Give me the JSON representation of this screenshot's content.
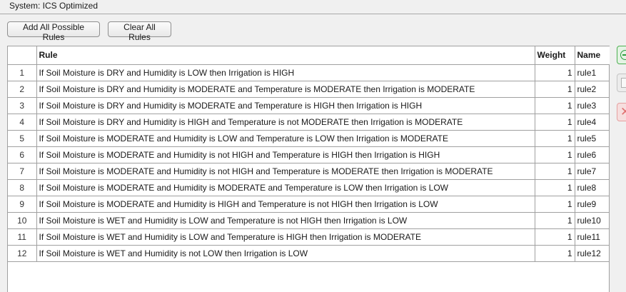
{
  "system_label": "System: ICS Optimized",
  "buttons": {
    "add_all": "Add All Possible Rules",
    "clear_all": "Clear All Rules"
  },
  "table": {
    "columns": {
      "rule": "Rule",
      "weight": "Weight",
      "name": "Name"
    },
    "rows": [
      {
        "index": "1",
        "rule": "If Soil Moisture is DRY and Humidity is LOW then Irrigation is HIGH",
        "weight": "1",
        "name": "rule1"
      },
      {
        "index": "2",
        "rule": "If Soil Moisture is DRY and Humidity is MODERATE and Temperature is MODERATE then Irrigation is MODERATE",
        "weight": "1",
        "name": "rule2"
      },
      {
        "index": "3",
        "rule": "If Soil Moisture is DRY and Humidity is MODERATE and Temperature is HIGH then Irrigation is HIGH",
        "weight": "1",
        "name": "rule3"
      },
      {
        "index": "4",
        "rule": "If Soil Moisture is DRY and Humidity is HIGH and Temperature is not MODERATE then Irrigation is MODERATE",
        "weight": "1",
        "name": "rule4"
      },
      {
        "index": "5",
        "rule": "If Soil Moisture is MODERATE and Humidity is LOW and Temperature is LOW then Irrigation is MODERATE",
        "weight": "1",
        "name": "rule5"
      },
      {
        "index": "6",
        "rule": "If Soil Moisture is MODERATE and Humidity is not HIGH and Temperature is HIGH then Irrigation is HIGH",
        "weight": "1",
        "name": "rule6"
      },
      {
        "index": "7",
        "rule": "If Soil Moisture is MODERATE and Humidity is not HIGH and Temperature is MODERATE then Irrigation is MODERATE",
        "weight": "1",
        "name": "rule7"
      },
      {
        "index": "8",
        "rule": "If Soil Moisture is MODERATE and Humidity is MODERATE and Temperature is LOW then Irrigation is LOW",
        "weight": "1",
        "name": "rule8"
      },
      {
        "index": "9",
        "rule": "If Soil Moisture is MODERATE and Humidity is HIGH and Temperature is not HIGH then Irrigation is LOW",
        "weight": "1",
        "name": "rule9"
      },
      {
        "index": "10",
        "rule": "If Soil Moisture is WET and Humidity is LOW and Temperature is not HIGH then Irrigation is LOW",
        "weight": "1",
        "name": "rule10"
      },
      {
        "index": "11",
        "rule": "If Soil Moisture is WET and Humidity is LOW and Temperature is HIGH then Irrigation is MODERATE",
        "weight": "1",
        "name": "rule11"
      },
      {
        "index": "12",
        "rule": "If Soil Moisture is WET and Humidity is not LOW then Irrigation is LOW",
        "weight": "1",
        "name": "rule12"
      }
    ]
  },
  "side_buttons": [
    {
      "icon": "add-circle-icon",
      "color": "#2e9e3e"
    },
    {
      "icon": "copy-icon",
      "color": "#b0b0b0"
    },
    {
      "icon": "delete-icon",
      "color": "#e07070"
    }
  ]
}
